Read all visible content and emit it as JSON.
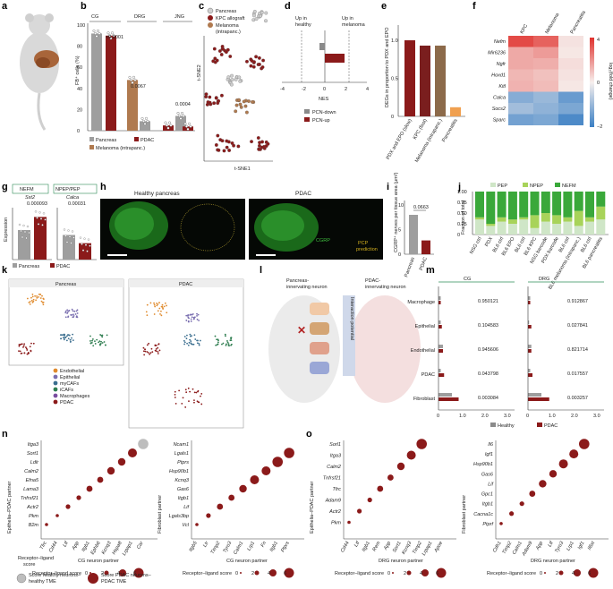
{
  "panels": {
    "a": "a",
    "b": "b",
    "c": "c",
    "d": "d",
    "e": "e",
    "f": "f",
    "g": "g",
    "h": "h",
    "i": "i",
    "j": "j",
    "k": "k",
    "l": "l",
    "m": "m",
    "n": "n",
    "o": "o"
  },
  "colors": {
    "healthy": "#9e9e9e",
    "pdac": "#8b1a1a",
    "melanoma": "#b07a4f",
    "heat_high": "#e0322e",
    "heat_low": "#3a7fc4"
  },
  "panel_b": {
    "groups": [
      "CG",
      "DRG",
      "JNG"
    ],
    "ylabel": "FB⁺ cells (%)",
    "yticks": [
      "0",
      "20",
      "40",
      "60",
      "80",
      "100"
    ],
    "pvalues": [
      "<0.0001",
      "0.0067",
      "0.0004"
    ],
    "legend": [
      "Pancreas",
      "PDAC",
      "Melanoma (intrapanc.)"
    ],
    "values": [
      92,
      90,
      48,
      9,
      5,
      14,
      4
    ]
  },
  "panel_c": {
    "legend": [
      "Pancreas",
      "KPC allograft",
      "Melanoma",
      "(intrapanc.)"
    ],
    "xlabel": "t-SNE1",
    "ylabel": "t-SNE2"
  },
  "panel_d": {
    "left_label": [
      "Up in",
      "healthy"
    ],
    "right_label": [
      "Up in",
      "melanoma"
    ],
    "xticks": [
      "-4",
      "-2",
      "0",
      "2",
      "4"
    ],
    "xlabel": "NES",
    "legend": [
      "PCN-down",
      "PCN-up"
    ]
  },
  "panel_e": {
    "ylabel": "DEGs in proportion to PDX and EPO",
    "yticks": [
      "0",
      "0.5",
      "1.0"
    ],
    "categories": [
      "PDX and EPO (slow)",
      "KPC (fast)",
      "Melanoma (intrapanc.)",
      "Pancreatitis"
    ],
    "values": [
      1.0,
      0.93,
      0.93,
      0.12
    ]
  },
  "panel_f": {
    "columns": [
      "KPC",
      "Melanoma",
      "Pancreatitis"
    ],
    "rows": [
      "Nefm",
      "Mir6236",
      "Ngfr",
      "Hoxd1",
      "Kitl",
      "Calca",
      "Socs2",
      "Sparc"
    ],
    "values": [
      [
        3.5,
        3.0,
        0.3
      ],
      [
        1.5,
        1.8,
        0.2
      ],
      [
        1.5,
        1.4,
        0.4
      ],
      [
        1.2,
        1.0,
        0.3
      ],
      [
        1.3,
        1.1,
        0.2
      ],
      [
        -1.2,
        -1.0,
        -1.5
      ],
      [
        -0.9,
        -1.1,
        -1.3
      ],
      [
        -1.4,
        -1.3,
        -1.8
      ]
    ],
    "cbar_ticks": [
      "4",
      "0",
      "−2"
    ],
    "cbar_label": "log₂(fold change)"
  },
  "panel_g": {
    "genes": [
      {
        "group": "NEFM",
        "gene": "Sst2",
        "p": "0.000093",
        "values": [
          18,
          26
        ]
      },
      {
        "group": "NPEP/PEP",
        "gene": "Calca",
        "p": "0.00031",
        "values": [
          15,
          10
        ]
      }
    ],
    "ylabel": "Expression",
    "legend": [
      "Pancreas",
      "PDAC"
    ]
  },
  "panel_h": {
    "titles": [
      "Healthy pancreas",
      "PDAC"
    ],
    "labels": [
      "CGRP",
      "PCP",
      "prediction"
    ]
  },
  "panel_i": {
    "ylabel": "CGRP⁺ nerves per tissue area (μm²)",
    "yticks": [
      "0",
      "5",
      "10"
    ],
    "categories": [
      "Pancreas",
      "PDAC"
    ],
    "values": [
      8.0,
      2.8
    ],
    "pvalue": "0.0663"
  },
  "panel_j": {
    "legend": [
      "PEP",
      "NPEP",
      "NEFM"
    ],
    "ylabel": "Fraction of total",
    "yticks": [
      "0",
      "0.25",
      "0.50",
      "0.75",
      "1.00"
    ],
    "categories": [
      "NSG ctrl",
      "PDX",
      "BL6 ctrl",
      "BL6 EPO",
      "BL6 ctrl",
      "BL6 KPC",
      "NSG barcode",
      "PDX barcode",
      "BL6 ctrl",
      "BL6 melanoma (intrapanc.)",
      "BL6 ctrl",
      "BL6 pancreatitis"
    ],
    "series": [
      {
        "name": "PEP",
        "values": [
          0.35,
          0.2,
          0.3,
          0.25,
          0.35,
          0.15,
          0.3,
          0.25,
          0.3,
          0.2,
          0.3,
          0.35
        ]
      },
      {
        "name": "NPEP",
        "values": [
          0.05,
          0.05,
          0.1,
          0.1,
          0.05,
          0.3,
          0.2,
          0.2,
          0.1,
          0.35,
          0.1,
          0.3
        ]
      },
      {
        "name": "NEFM",
        "values": [
          0.6,
          0.75,
          0.6,
          0.65,
          0.6,
          0.55,
          0.5,
          0.55,
          0.6,
          0.45,
          0.6,
          0.35
        ]
      }
    ]
  },
  "panel_k": {
    "titles": [
      "Pancreas",
      "PDAC"
    ],
    "legend": [
      "Endothelial",
      "Epithelial",
      "myCAFs",
      "iCAFs",
      "Macrophages",
      "PDAC"
    ],
    "legend_colors": [
      "#e08a2c",
      "#7a6fb0",
      "#3b6e8f",
      "#2e7d4f",
      "#7a4ea0",
      "#8b1a1a"
    ]
  },
  "panel_l": {
    "labels": [
      "Pancreas-",
      "innervating neuron",
      "PDAC-",
      "innervating neuron",
      "Interaction potential"
    ]
  },
  "panel_m": {
    "groups": [
      "CG",
      "DRG"
    ],
    "rows": [
      "Macrophage",
      "Epithelial",
      "Endothelial",
      "PDAC",
      "Fibroblast"
    ],
    "cg_p": [
      "0.950121",
      "0.104583",
      "0.945606",
      "0.043798",
      "0.003084"
    ],
    "drg_p": [
      "0.912867",
      "0.027841",
      "0.821714",
      "0.017557",
      "0.003257"
    ],
    "cg_values": [
      [
        0.1,
        0.1
      ],
      [
        0.1,
        0.15
      ],
      [
        0.2,
        0.2
      ],
      [
        0.1,
        0.25
      ],
      [
        0.6,
        0.9
      ]
    ],
    "drg_values": [
      [
        0.1,
        0.1
      ],
      [
        0.05,
        0.15
      ],
      [
        0.15,
        0.15
      ],
      [
        0.1,
        0.2
      ],
      [
        0.6,
        0.95
      ]
    ],
    "xticks": [
      "0",
      "1.0",
      "2.0",
      "3.0"
    ],
    "legend": [
      "Healthy",
      "PDAC"
    ]
  },
  "dotplots": [
    {
      "panel": "n",
      "ylabel": "Epithelia–PDAC partner",
      "xlabel": "CG neuron partner",
      "y": [
        "Itga3",
        "Sort1",
        "Ldlr",
        "Calm2",
        "Efna5",
        "Lama3",
        "Tnfrsf21",
        "Actr2",
        "Pkm",
        "B2m"
      ],
      "x": [
        "Tfrc",
        "Cd44",
        "Ltf",
        "App",
        "Itgb1",
        "Ephb6",
        "Kcnq3",
        "Hspa8",
        "Lrpap1",
        "Car"
      ],
      "scores": [
        1,
        1,
        2,
        2,
        3,
        3,
        4,
        4,
        5,
        6
      ]
    },
    {
      "panel": "n2",
      "ylabel": "Fibroblast partner",
      "xlabel": "CG neuron partner",
      "y": [
        "Ncam1",
        "Lgals1",
        "Ptprs",
        "Hsp90b1",
        "Kcnq3",
        "Gas6",
        "Itgb1",
        "Lif",
        "Lgals3bp",
        "Vcl"
      ],
      "x": [
        "Itgb5",
        "Ltr",
        "Timp2",
        "Tyro3",
        "Calm1",
        "Lrp1",
        "Fn",
        "Itgb1",
        "Ptprs"
      ],
      "scores": [
        1,
        2,
        3,
        3,
        4,
        5,
        5,
        6,
        6,
        7
      ]
    },
    {
      "panel": "o",
      "ylabel": "Epithelia–PDAC partner",
      "xlabel": "DRG neuron partner",
      "y": [
        "Sorl1",
        "Itga3",
        "Calm2",
        "Tnfrsf21",
        "Tfrc",
        "Adam9",
        "Actr2",
        "Pkm"
      ],
      "x": [
        "Cd44",
        "Ltf",
        "Itgb1",
        "Rem",
        "App",
        "Sort1",
        "Kcnq3",
        "Timp2",
        "Lrpap1",
        "Apoe"
      ],
      "scores": [
        1,
        2,
        2,
        3,
        3,
        4,
        5,
        6,
        6,
        6
      ]
    },
    {
      "panel": "o2",
      "ylabel": "Fibroblast partner",
      "xlabel": "DRG neuron partner",
      "y": [
        "Il6",
        "Igf1",
        "Hsp90b1",
        "Gas6",
        "Lif",
        "Gpc1",
        "Itgb1",
        "Cacna1c",
        "Ptprf"
      ],
      "x": [
        "Cdh1",
        "Timp2",
        "Calm1",
        "Adam9",
        "App",
        "Ltf",
        "Tyro3",
        "Lrp1",
        "Igf1",
        "Il6st"
      ],
      "scores": [
        1,
        2,
        2,
        3,
        4,
        4,
        5,
        5,
        6,
        6
      ]
    }
  ],
  "size_legend": {
    "title": [
      "Receptor–ligand",
      "score"
    ],
    "ticks": [
      "0",
      "2",
      "4",
      "6"
    ],
    "healthy": [
      "Score healthy neurons–",
      "healthy TME"
    ],
    "pdac": [
      "Score PDAC neurons–",
      "PDAC TME"
    ]
  }
}
